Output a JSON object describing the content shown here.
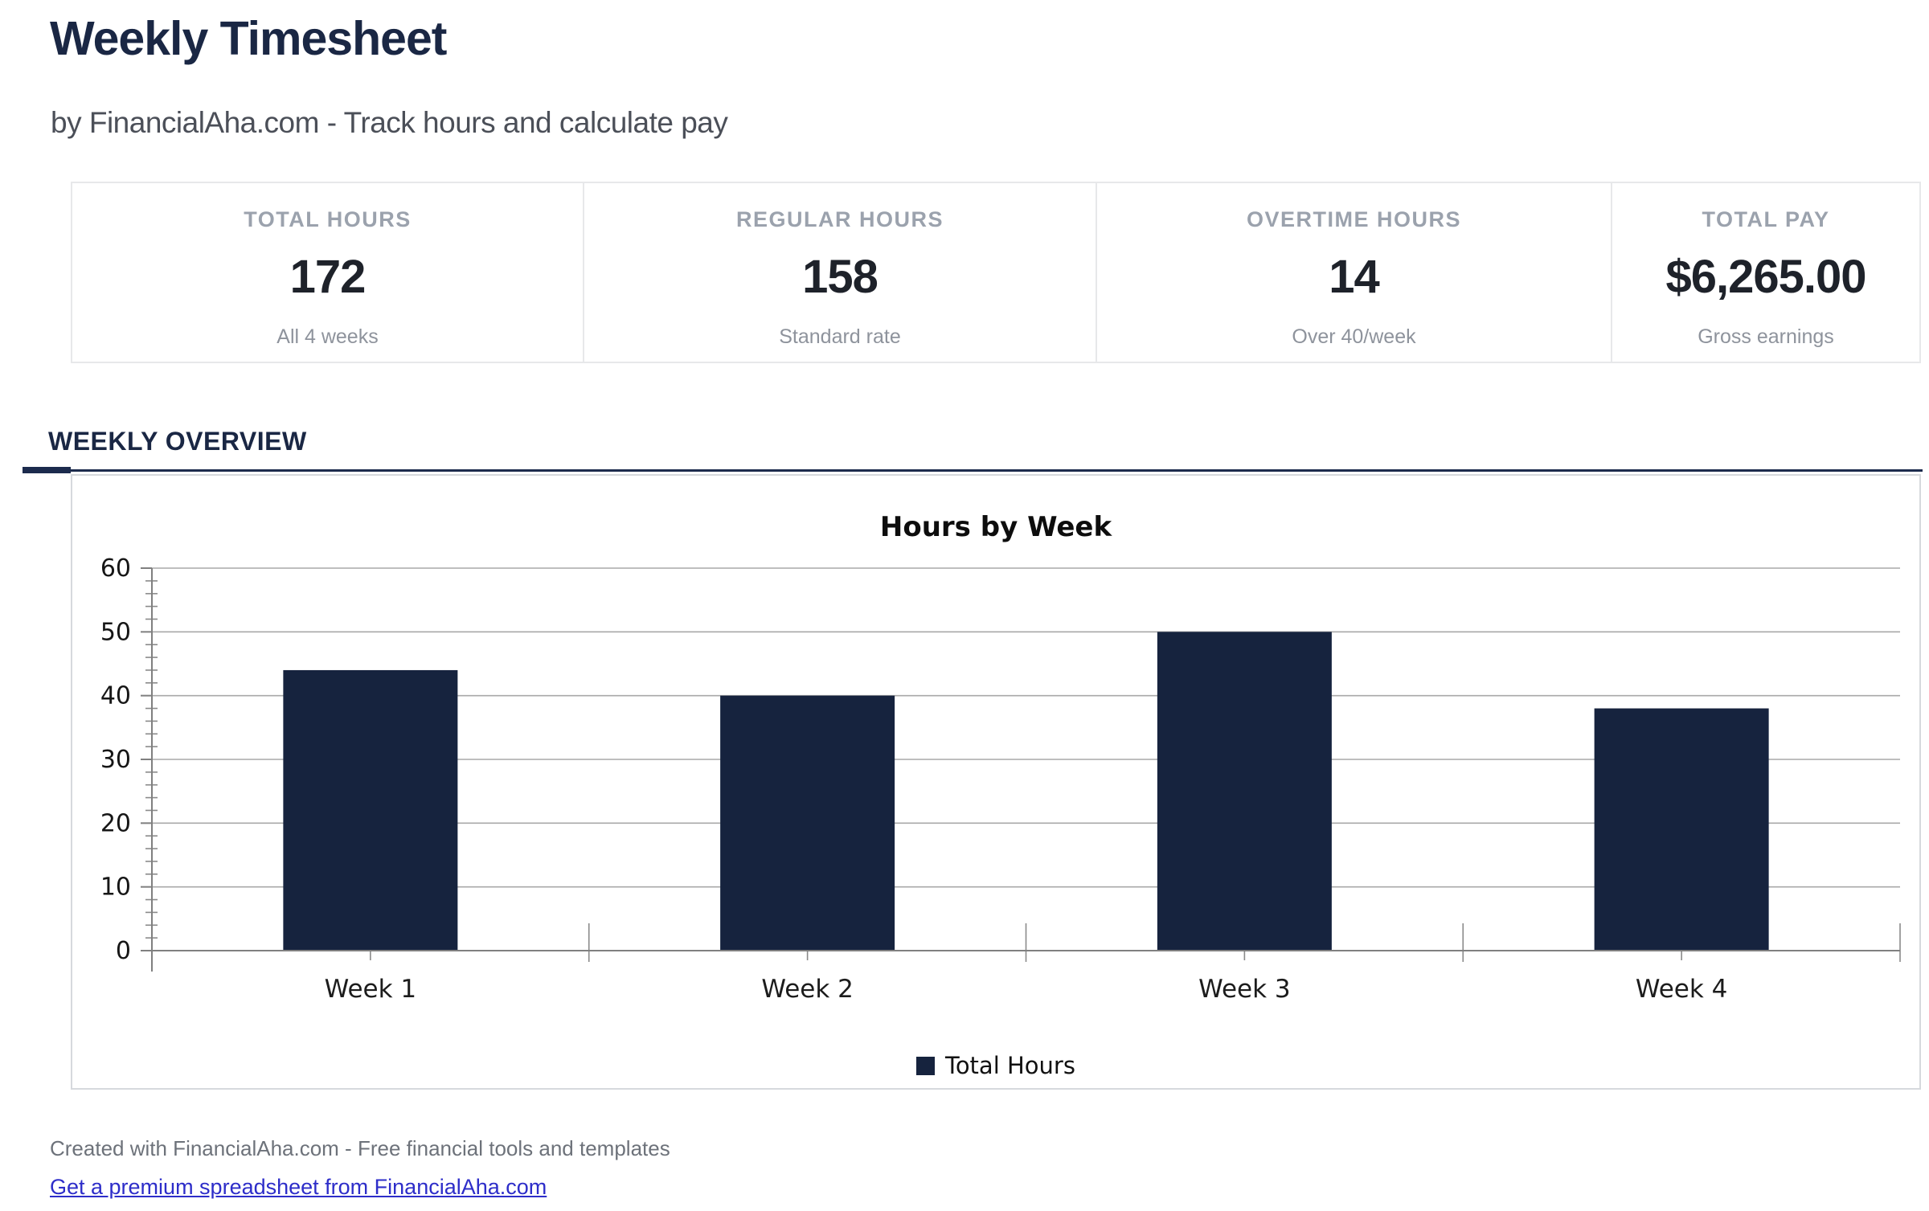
{
  "header": {
    "title": "Weekly Timesheet",
    "subtitle": "by FinancialAha.com - Track hours and calculate pay"
  },
  "stats": {
    "cards": [
      {
        "label": "TOTAL HOURS",
        "value": "172",
        "sub": "All 4 weeks"
      },
      {
        "label": "REGULAR HOURS",
        "value": "158",
        "sub": "Standard rate"
      },
      {
        "label": "OVERTIME HOURS",
        "value": "14",
        "sub": "Over 40/week"
      },
      {
        "label": "TOTAL PAY",
        "value": "$6,265.00",
        "sub": "Gross earnings"
      }
    ]
  },
  "section": {
    "heading": "WEEKLY OVERVIEW"
  },
  "chart_data": {
    "type": "bar",
    "title": "Hours by Week",
    "categories": [
      "Week 1",
      "Week 2",
      "Week 3",
      "Week 4"
    ],
    "series": [
      {
        "name": "Total Hours",
        "values": [
          44,
          40,
          50,
          38
        ]
      }
    ],
    "xlabel": "",
    "ylabel": "",
    "ylim": [
      0,
      60
    ],
    "ytick_step": 10,
    "minor_tick_step": 2,
    "grid": true,
    "legend_position": "bottom",
    "bar_color": "#16233e",
    "gridline_color": "#a9a9a9",
    "axis_color": "#808080"
  },
  "footer": {
    "credit": "Created with FinancialAha.com - Free financial tools and templates",
    "link_text": "Get a premium spreadsheet from FinancialAha.com"
  },
  "colors": {
    "accent_navy": "#1a2744",
    "bar_navy": "#16233e",
    "link_blue": "#2d2dc9",
    "muted_label": "#9ba2ad",
    "card_border": "#e7e8ea"
  }
}
